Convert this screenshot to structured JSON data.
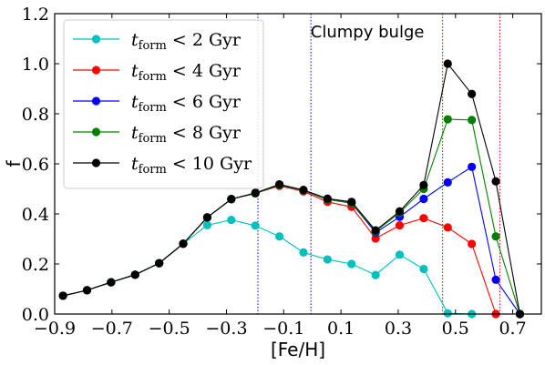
{
  "chart_data": {
    "type": "line",
    "xlabel": "[Fe/H]",
    "ylabel": "f",
    "xlim": [
      -0.9,
      0.8
    ],
    "ylim": [
      0.0,
      1.2
    ],
    "xticks": [
      -0.9,
      -0.7,
      -0.5,
      -0.3,
      -0.1,
      0.1,
      0.3,
      0.5,
      0.7
    ],
    "xtick_labels": [
      "−0.9",
      "−0.7",
      "−0.5",
      "−0.3",
      "−0.1",
      "0.1",
      "0.3",
      "0.5",
      "0.7"
    ],
    "yticks": [
      0.0,
      0.2,
      0.4,
      0.6,
      0.8,
      1.0,
      1.2
    ],
    "ytick_labels": [
      "0.0",
      "0.2",
      "0.4",
      "0.6",
      "0.8",
      "1.0",
      "1.2"
    ],
    "grid": false,
    "legend_position": "top-left",
    "annotations": [
      {
        "text": "Clumpy bulge",
        "x": -0.005,
        "y": 1.14
      }
    ],
    "vlines": [
      {
        "x": -0.19,
        "color": "#0000cc"
      },
      {
        "x": -0.005,
        "color": "#0000cc"
      },
      {
        "x": 0.455,
        "color": "#dd0000"
      },
      {
        "x": 0.655,
        "color": "#dd0000"
      }
    ],
    "x": [
      -0.871,
      -0.787,
      -0.703,
      -0.619,
      -0.535,
      -0.451,
      -0.367,
      -0.283,
      -0.199,
      -0.115,
      -0.031,
      0.053,
      0.137,
      0.221,
      0.305,
      0.389,
      0.473,
      0.557,
      0.641,
      0.725
    ],
    "series": [
      {
        "name": "< 2 Gyr",
        "legend_prefix": "t",
        "legend_sub": "form",
        "legend_suffix": "< 2 Gyr",
        "color": "#00bfbf",
        "values": [
          0.073,
          0.095,
          0.127,
          0.157,
          0.203,
          0.281,
          0.355,
          0.376,
          0.353,
          0.31,
          0.246,
          0.218,
          0.2,
          0.156,
          0.237,
          0.18,
          0.003,
          0.0,
          0.0,
          0.0
        ]
      },
      {
        "name": "< 4 Gyr",
        "legend_prefix": "t",
        "legend_sub": "form",
        "legend_suffix": "< 4 Gyr",
        "color": "#ff0000",
        "values": [
          0.073,
          0.095,
          0.127,
          0.157,
          0.203,
          0.281,
          0.386,
          0.459,
          0.482,
          0.512,
          0.49,
          0.448,
          0.428,
          0.302,
          0.354,
          0.383,
          0.346,
          0.28,
          0.0,
          0.0
        ]
      },
      {
        "name": "< 6 Gyr",
        "legend_prefix": "t",
        "legend_sub": "form",
        "legend_suffix": "< 6 Gyr",
        "color": "#0000ff",
        "values": [
          0.073,
          0.095,
          0.127,
          0.157,
          0.203,
          0.281,
          0.386,
          0.459,
          0.482,
          0.516,
          0.493,
          0.458,
          0.443,
          0.325,
          0.388,
          0.46,
          0.526,
          0.588,
          0.137,
          0.0
        ]
      },
      {
        "name": "< 8 Gyr",
        "legend_prefix": "t",
        "legend_sub": "form",
        "legend_suffix": "< 8 Gyr",
        "color": "#008000",
        "values": [
          0.073,
          0.095,
          0.127,
          0.157,
          0.203,
          0.281,
          0.386,
          0.459,
          0.482,
          0.516,
          0.493,
          0.458,
          0.443,
          0.33,
          0.405,
          0.5,
          0.778,
          0.775,
          0.31,
          0.0
        ]
      },
      {
        "name": "< 10 Gyr",
        "legend_prefix": "t",
        "legend_sub": "form",
        "legend_suffix": "< 10 Gyr",
        "color": "#000000",
        "values": [
          0.073,
          0.095,
          0.127,
          0.157,
          0.203,
          0.281,
          0.386,
          0.459,
          0.484,
          0.518,
          0.496,
          0.461,
          0.448,
          0.334,
          0.41,
          0.515,
          1.0,
          0.879,
          0.53,
          0.0
        ]
      }
    ]
  }
}
